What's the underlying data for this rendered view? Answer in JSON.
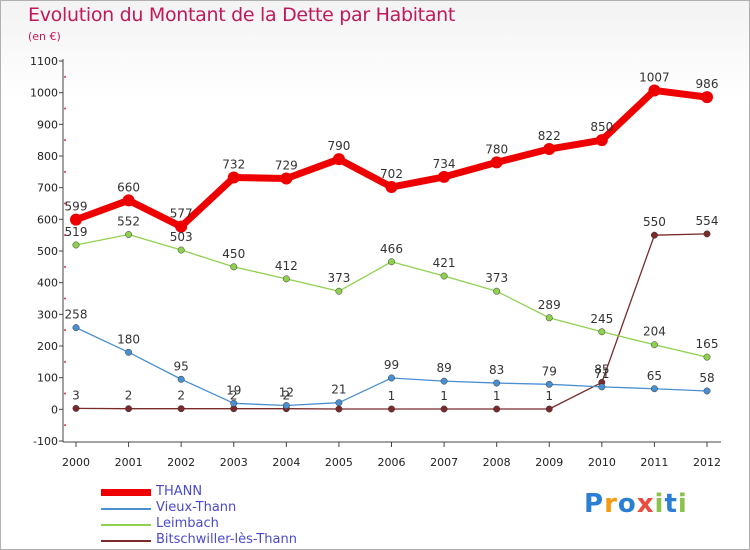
{
  "title": "Evolution du Montant de la Dette par Habitant",
  "unit_label": "(en €)",
  "logo": {
    "text": "Proxiti",
    "letters": [
      {
        "ch": "P",
        "color": "#2a7fd4"
      },
      {
        "ch": "r",
        "color": "#f39c12"
      },
      {
        "ch": "o",
        "color": "#2a7fd4"
      },
      {
        "ch": "x",
        "color": "#e74c3c"
      },
      {
        "ch": "i",
        "color": "#8bc34a"
      },
      {
        "ch": "t",
        "color": "#2a7fd4"
      },
      {
        "ch": "i",
        "color": "#8bc34a"
      }
    ]
  },
  "chart_data": {
    "type": "line",
    "title": "Evolution du Montant de la Dette par Habitant",
    "ylabel": "(en €)",
    "xlabel": "",
    "x": [
      "2000",
      "2001",
      "2002",
      "2003",
      "2004",
      "2005",
      "2006",
      "2007",
      "2008",
      "2009",
      "2010",
      "2011",
      "2012"
    ],
    "yticks": [
      -100,
      0,
      100,
      200,
      300,
      400,
      500,
      600,
      700,
      800,
      900,
      1000,
      1100
    ],
    "ylim": [
      -100,
      1100
    ],
    "grid": false,
    "legend_position": "bottom-left",
    "series": [
      {
        "name": "THANN",
        "color": "#ee0000",
        "width": 7,
        "marker": 6,
        "values": [
          599,
          660,
          577,
          732,
          729,
          790,
          702,
          734,
          780,
          822,
          850,
          1007,
          986
        ],
        "labels": [
          "599",
          "660",
          "577",
          "732",
          "729",
          "790",
          "702",
          "734",
          "780",
          "822",
          "850",
          "1007",
          "986"
        ]
      },
      {
        "name": "Vieux-Thann",
        "color": "#4a90d0",
        "width": 1.3,
        "marker": 3.2,
        "values": [
          258,
          180,
          95,
          19,
          12,
          21,
          99,
          89,
          83,
          79,
          71,
          65,
          58
        ],
        "labels": [
          "258",
          "180",
          "95",
          "19",
          "12",
          "21",
          "99",
          "89",
          "83",
          "79",
          "71",
          "65",
          "58"
        ]
      },
      {
        "name": "Leimbach",
        "color": "#8fd14f",
        "width": 1.3,
        "marker": 3.2,
        "values": [
          519,
          552,
          503,
          450,
          412,
          373,
          466,
          421,
          373,
          289,
          245,
          204,
          165
        ],
        "labels": [
          "519",
          "552",
          "503",
          "450",
          "412",
          "373",
          "466",
          "421",
          "373",
          "289",
          "245",
          "204",
          "165"
        ]
      },
      {
        "name": "Bitschwiller-lès-Thann",
        "color": "#7a2a2a",
        "width": 1.3,
        "marker": 3.2,
        "values": [
          3,
          2,
          2,
          2,
          2,
          1,
          1,
          1,
          1,
          1,
          85,
          550,
          554
        ],
        "labels": [
          "3",
          "2",
          "2",
          "2",
          "2",
          "",
          "1",
          "1",
          "1",
          "1",
          "85",
          "550",
          "554"
        ]
      }
    ]
  }
}
